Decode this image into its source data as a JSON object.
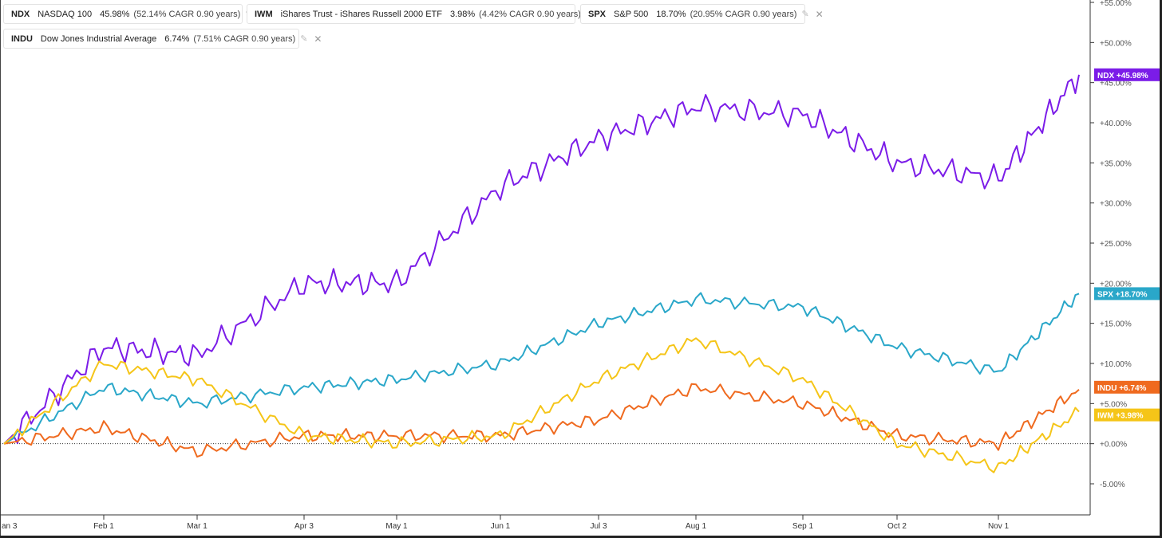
{
  "legend": [
    {
      "symbol": "NDX",
      "name": "NASDAQ 100",
      "pct": "45.98%",
      "cagr": "(52.14% CAGR 0.90 years)",
      "color": "#7b1ce8"
    },
    {
      "symbol": "IWM",
      "name": "iShares Trust - iShares Russell 2000 ETF",
      "pct": "3.98%",
      "cagr": "(4.42% CAGR 0.90 years)",
      "color": "#f5c518"
    },
    {
      "symbol": "SPX",
      "name": "S&P 500",
      "pct": "18.70%",
      "cagr": "(20.95% CAGR 0.90 years)",
      "color": "#2aa7c9"
    },
    {
      "symbol": "INDU",
      "name": "Dow Jones Industrial Average",
      "pct": "6.74%",
      "cagr": "(7.51% CAGR 0.90 years)",
      "color": "#ef6a1f"
    }
  ],
  "legend_tool_icon": "✎",
  "legend_close_icon": "✕",
  "chart_data": {
    "type": "line",
    "x_tick_labels": [
      "an 3",
      "Feb 1",
      "Mar 1",
      "Apr 3",
      "May 1",
      "Jun 1",
      "Jul 3",
      "Aug 1",
      "Sep 1",
      "Oct 2",
      "Nov 1"
    ],
    "y_tick_labels": [
      "+55.00%",
      "+50.00%",
      "+45.00%",
      "+40.00%",
      "+35.00%",
      "+30.00%",
      "+25.00%",
      "+20.00%",
      "+15.00%",
      "+10.00%",
      "+5.00%",
      "+0.00%",
      "-5.00%"
    ],
    "y_range": [
      -8,
      56
    ],
    "zero_line": "dotted",
    "series": [
      {
        "key": "NDX",
        "color": "#7b1ce8",
        "end_label": "NDX   +45.98%",
        "points": [
          [
            "an 3",
            0
          ],
          [
            "Feb 1",
            12
          ],
          [
            "Mar 1",
            11
          ],
          [
            "Apr 3",
            20
          ],
          [
            "May 1",
            20
          ],
          [
            "Jun 1",
            32
          ],
          [
            "Jul 3",
            38
          ],
          [
            "Aug 1",
            42
          ],
          [
            "Sep 1",
            41
          ],
          [
            "Oct 2",
            35
          ],
          [
            "Nov 1",
            33
          ],
          [
            "end",
            45.98
          ]
        ]
      },
      {
        "key": "SPX",
        "color": "#2aa7c9",
        "end_label": "SPX   +18.70%",
        "points": [
          [
            "an 3",
            0
          ],
          [
            "Feb 1",
            7
          ],
          [
            "Mar 1",
            5
          ],
          [
            "Apr 3",
            7
          ],
          [
            "May 1",
            8
          ],
          [
            "Jun 1",
            10
          ],
          [
            "Jul 3",
            15
          ],
          [
            "Aug 1",
            18
          ],
          [
            "Sep 1",
            17
          ],
          [
            "Oct 2",
            12
          ],
          [
            "Nov 1",
            9
          ],
          [
            "end",
            18.7
          ]
        ]
      },
      {
        "key": "INDU",
        "color": "#ef6a1f",
        "end_label": "INDU   +6.74%",
        "points": [
          [
            "an 3",
            0
          ],
          [
            "Feb 1",
            2
          ],
          [
            "Mar 1",
            -1
          ],
          [
            "Apr 3",
            1
          ],
          [
            "May 1",
            1
          ],
          [
            "Jun 1",
            1
          ],
          [
            "Jul 3",
            3
          ],
          [
            "Aug 1",
            7
          ],
          [
            "Sep 1",
            5
          ],
          [
            "Oct 2",
            1
          ],
          [
            "Nov 1",
            0
          ],
          [
            "end",
            6.74
          ]
        ]
      },
      {
        "key": "IWM",
        "color": "#f5c518",
        "end_label": "IWM   +3.98%",
        "points": [
          [
            "an 3",
            0
          ],
          [
            "Feb 1",
            10
          ],
          [
            "Mar 1",
            8
          ],
          [
            "Apr 3",
            1
          ],
          [
            "May 1",
            0
          ],
          [
            "Jun 1",
            1
          ],
          [
            "Jul 3",
            8
          ],
          [
            "Aug 1",
            13
          ],
          [
            "Sep 1",
            8
          ],
          [
            "Oct 2",
            0
          ],
          [
            "Nov 1",
            -3
          ],
          [
            "end",
            3.98
          ]
        ]
      }
    ]
  }
}
